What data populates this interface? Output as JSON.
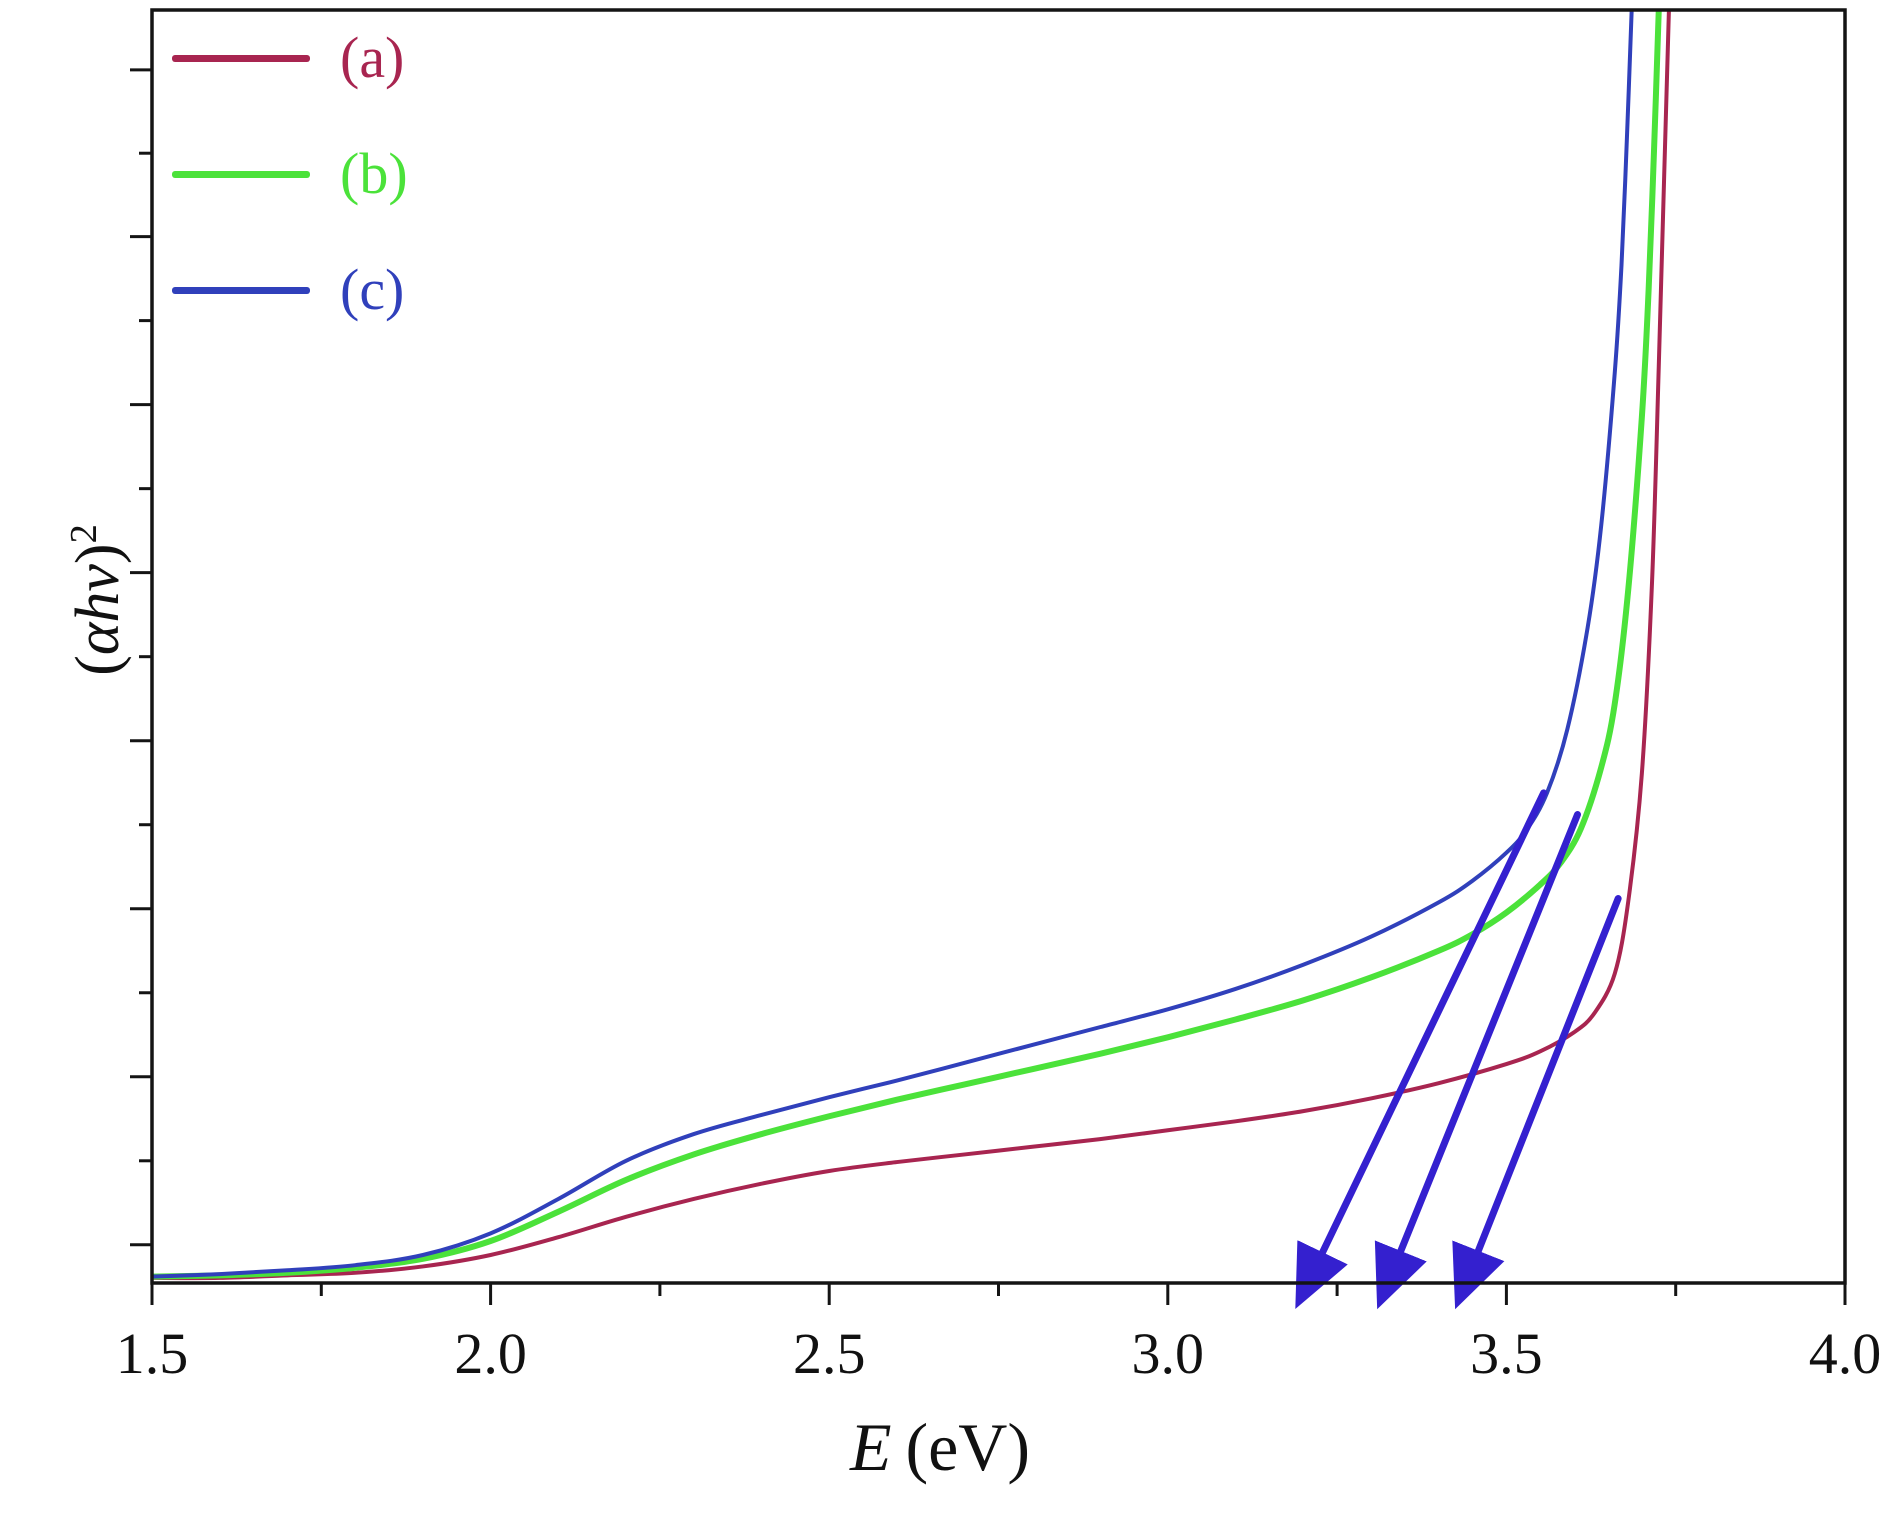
{
  "chart_data": {
    "type": "line",
    "title": "",
    "xlabel": "E (eV)",
    "ylabel": "(αhν)²",
    "xlim": [
      1.5,
      4.0
    ],
    "ylim": [
      0,
      1
    ],
    "x_major_ticks": [
      1.5,
      2.0,
      2.5,
      3.0,
      3.5,
      4.0
    ],
    "x_tick_labels": [
      "1.5",
      "2.0",
      "2.5",
      "3.0",
      "3.5",
      "4.0"
    ],
    "x_minor_ticks": [
      1.75,
      2.25,
      2.75,
      3.25,
      3.75
    ],
    "y_major_ticks": [
      0.03,
      0.162,
      0.294,
      0.426,
      0.558,
      0.69,
      0.822,
      0.953
    ],
    "y_tick_labels": [],
    "grid": false,
    "legend_position": "top-left-inside",
    "frame_color": "#141414",
    "series": [
      {
        "name": "(a)",
        "color": "#a82550",
        "width": 4,
        "points": [
          [
            1.5,
            0.004
          ],
          [
            1.6,
            0.004
          ],
          [
            1.7,
            0.006
          ],
          [
            1.8,
            0.008
          ],
          [
            1.9,
            0.013
          ],
          [
            2.0,
            0.022
          ],
          [
            2.1,
            0.036
          ],
          [
            2.2,
            0.052
          ],
          [
            2.3,
            0.066
          ],
          [
            2.4,
            0.078
          ],
          [
            2.5,
            0.088
          ],
          [
            2.6,
            0.095
          ],
          [
            2.7,
            0.101
          ],
          [
            2.8,
            0.107
          ],
          [
            2.9,
            0.113
          ],
          [
            3.0,
            0.12
          ],
          [
            3.1,
            0.127
          ],
          [
            3.2,
            0.135
          ],
          [
            3.3,
            0.145
          ],
          [
            3.4,
            0.157
          ],
          [
            3.5,
            0.172
          ],
          [
            3.55,
            0.182
          ],
          [
            3.6,
            0.197
          ],
          [
            3.63,
            0.212
          ],
          [
            3.66,
            0.243
          ],
          [
            3.68,
            0.3
          ],
          [
            3.7,
            0.4
          ],
          [
            3.715,
            0.55
          ],
          [
            3.725,
            0.72
          ],
          [
            3.733,
            0.87
          ],
          [
            3.74,
            1.0
          ]
        ]
      },
      {
        "name": "(b)",
        "color": "#4be23a",
        "width": 6,
        "points": [
          [
            1.5,
            0.005
          ],
          [
            1.6,
            0.006
          ],
          [
            1.7,
            0.008
          ],
          [
            1.8,
            0.012
          ],
          [
            1.9,
            0.019
          ],
          [
            2.0,
            0.033
          ],
          [
            2.1,
            0.056
          ],
          [
            2.2,
            0.081
          ],
          [
            2.3,
            0.101
          ],
          [
            2.4,
            0.117
          ],
          [
            2.5,
            0.131
          ],
          [
            2.6,
            0.144
          ],
          [
            2.7,
            0.156
          ],
          [
            2.8,
            0.168
          ],
          [
            2.9,
            0.18
          ],
          [
            3.0,
            0.193
          ],
          [
            3.1,
            0.207
          ],
          [
            3.2,
            0.222
          ],
          [
            3.3,
            0.24
          ],
          [
            3.4,
            0.261
          ],
          [
            3.45,
            0.274
          ],
          [
            3.5,
            0.291
          ],
          [
            3.55,
            0.313
          ],
          [
            3.58,
            0.33
          ],
          [
            3.61,
            0.357
          ],
          [
            3.64,
            0.405
          ],
          [
            3.66,
            0.455
          ],
          [
            3.68,
            0.545
          ],
          [
            3.7,
            0.68
          ],
          [
            3.71,
            0.78
          ],
          [
            3.718,
            0.89
          ],
          [
            3.725,
            1.0
          ]
        ]
      },
      {
        "name": "(c)",
        "color": "#3040bb",
        "width": 4,
        "points": [
          [
            1.5,
            0.005
          ],
          [
            1.6,
            0.007
          ],
          [
            1.7,
            0.01
          ],
          [
            1.8,
            0.014
          ],
          [
            1.9,
            0.022
          ],
          [
            2.0,
            0.039
          ],
          [
            2.1,
            0.066
          ],
          [
            2.2,
            0.096
          ],
          [
            2.3,
            0.117
          ],
          [
            2.4,
            0.132
          ],
          [
            2.5,
            0.146
          ],
          [
            2.6,
            0.159
          ],
          [
            2.7,
            0.173
          ],
          [
            2.8,
            0.187
          ],
          [
            2.9,
            0.201
          ],
          [
            3.0,
            0.215
          ],
          [
            3.1,
            0.231
          ],
          [
            3.2,
            0.25
          ],
          [
            3.3,
            0.272
          ],
          [
            3.4,
            0.299
          ],
          [
            3.45,
            0.316
          ],
          [
            3.5,
            0.338
          ],
          [
            3.53,
            0.356
          ],
          [
            3.56,
            0.385
          ],
          [
            3.59,
            0.435
          ],
          [
            3.62,
            0.515
          ],
          [
            3.64,
            0.595
          ],
          [
            3.66,
            0.715
          ],
          [
            3.67,
            0.8
          ],
          [
            3.678,
            0.9
          ],
          [
            3.685,
            1.0
          ]
        ]
      }
    ],
    "arrows": [
      {
        "from": [
          3.555,
          0.385
        ],
        "to": [
          3.195,
          -0.013
        ],
        "color": "#3420cf",
        "width": 7
      },
      {
        "from": [
          3.605,
          0.368
        ],
        "to": [
          3.315,
          -0.013
        ],
        "color": "#3420cf",
        "width": 7
      },
      {
        "from": [
          3.665,
          0.302
        ],
        "to": [
          3.43,
          -0.013
        ],
        "color": "#3420cf",
        "width": 7
      }
    ]
  },
  "axes": {
    "x_label_var": "E",
    "x_label_rest": "(eV)",
    "y_label_open": "(",
    "y_label_var": "αhν",
    "y_label_close": ")",
    "y_label_sup": "2"
  }
}
